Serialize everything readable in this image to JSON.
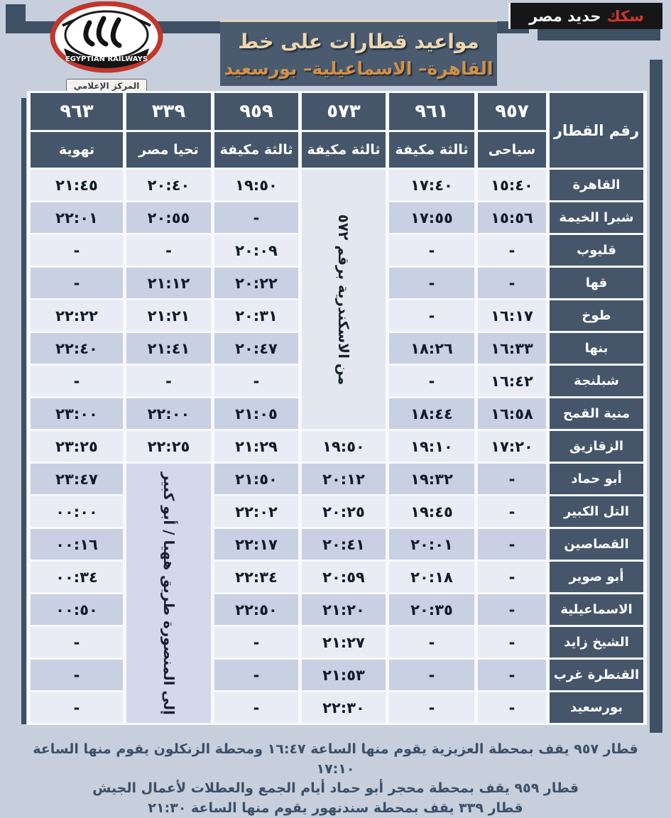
{
  "badge": {
    "red_text": "سكك",
    "white_text": "حديد مصر"
  },
  "logo": {
    "banner_text": "EGYPTIAN RAILWAYS",
    "label": "المركز الإعلامي"
  },
  "header": {
    "title": "مواعيد قطارات على خط",
    "subtitle": "القاهرة– الاسماعيلية– بورسعيد"
  },
  "colors": {
    "dark_slate": "#45566b",
    "row_light": "#e9ecf5",
    "row_dark": "#c9d0e4",
    "title_cream": "#ecd7ae",
    "subtitle_orange": "#d0914a",
    "badge_red": "#cf352a",
    "page_background": "#c7cfdd"
  },
  "table": {
    "corner_header": "رقم القطار",
    "trains": [
      {
        "number": "٩٥٧",
        "class_label": "سياحى"
      },
      {
        "number": "٩٦١",
        "class_label": "ثالثة مكيفة"
      },
      {
        "number": "٥٧٣",
        "class_label": "ثالثة مكيفة"
      },
      {
        "number": "٩٥٩",
        "class_label": "ثالثة مكيفة"
      },
      {
        "number": "٣٣٩",
        "class_label": "تحيا مصر"
      },
      {
        "number": "٩٦٣",
        "class_label": "تهوية"
      }
    ],
    "merged": {
      "from_alexandria": "من الاسكندرية برقم ٥٧٢",
      "to_mansoura": "إلى المنصورة طريق ههيا / أبو كبير"
    },
    "rows": [
      {
        "station": "القاهرة",
        "times": [
          "١٥:٤٠",
          "١٧:٤٠",
          "@M1",
          "١٩:٥٠",
          "٢٠:٤٠",
          "٢١:٤٥"
        ]
      },
      {
        "station": "شبرا الخيمة",
        "times": [
          "١٥:٥٦",
          "١٧:٥٥",
          "@M1",
          "-",
          "٢٠:٥٥",
          "٢٢:٠١"
        ]
      },
      {
        "station": "قليوب",
        "times": [
          "-",
          "-",
          "@M1",
          "٢٠:٠٩",
          "-",
          "-"
        ]
      },
      {
        "station": "قها",
        "times": [
          "-",
          "-",
          "@M1",
          "٢٠:٢٢",
          "٢١:١٢",
          "-"
        ]
      },
      {
        "station": "طوخ",
        "times": [
          "١٦:١٧",
          "-",
          "@M1",
          "٢٠:٣١",
          "٢١:٢١",
          "٢٢:٢٢"
        ]
      },
      {
        "station": "بنها",
        "times": [
          "١٦:٣٣",
          "١٨:٢٦",
          "@M1",
          "٢٠:٤٧",
          "٢١:٤١",
          "٢٢:٤٠"
        ]
      },
      {
        "station": "شبلنجة",
        "times": [
          "١٦:٤٢",
          "-",
          "@M1",
          "-",
          "-",
          "-"
        ]
      },
      {
        "station": "منية القمح",
        "times": [
          "١٦:٥٨",
          "١٨:٤٤",
          "@M1",
          "٢١:٠٥",
          "٢٢:٠٠",
          "٢٣:٠٠"
        ]
      },
      {
        "station": "الزقازيق",
        "times": [
          "١٧:٢٠",
          "١٩:١٠",
          "١٩:٥٠",
          "٢١:٢٩",
          "٢٢:٢٥",
          "٢٣:٢٥"
        ]
      },
      {
        "station": "أبو حماد",
        "times": [
          "-",
          "١٩:٣٢",
          "٢٠:١٢",
          "٢١:٥٠",
          "@M2",
          "٢٣:٤٧"
        ]
      },
      {
        "station": "التل الكبير",
        "times": [
          "-",
          "١٩:٤٥",
          "٢٠:٢٥",
          "٢٢:٠٢",
          "@M2",
          "٠٠:٠٠"
        ]
      },
      {
        "station": "القصاصين",
        "times": [
          "-",
          "٢٠:٠١",
          "٢٠:٤١",
          "٢٢:١٧",
          "@M2",
          "٠٠:١٦"
        ]
      },
      {
        "station": "أبو صوير",
        "times": [
          "-",
          "٢٠:١٨",
          "٢٠:٥٩",
          "٢٢:٣٤",
          "@M2",
          "٠٠:٣٤"
        ]
      },
      {
        "station": "الاسماعيلية",
        "times": [
          "-",
          "٢٠:٣٥",
          "٢١:٢٠",
          "٢٢:٥٠",
          "@M2",
          "٠٠:٥٠"
        ]
      },
      {
        "station": "الشيخ زايد",
        "times": [
          "-",
          "-",
          "٢١:٢٧",
          "-",
          "@M2",
          "-"
        ]
      },
      {
        "station": "القنطرة غرب",
        "times": [
          "-",
          "-",
          "٢١:٥٣",
          "-",
          "@M2",
          "-"
        ]
      },
      {
        "station": "بورسعيد",
        "times": [
          "-",
          "-",
          "٢٢:٣٠",
          "-",
          "@M2",
          "-"
        ]
      }
    ]
  },
  "notes": [
    "قطار ٩٥٧  يقف بمحطة العزيزية  يقوم منها الساعة ١٦:٤٧ ومحطة الزنكلون يقوم منها الساعة ١٧:١٠",
    "قطار ٩٥٩ يقف بمحطة محجر أبو حماد  أيام الجمع والعطلات لأعمال الجيش",
    "قطار ٣٣٩ يقف بمحطة سندنهور يقوم منها الساعة ٢١:٣٠"
  ]
}
